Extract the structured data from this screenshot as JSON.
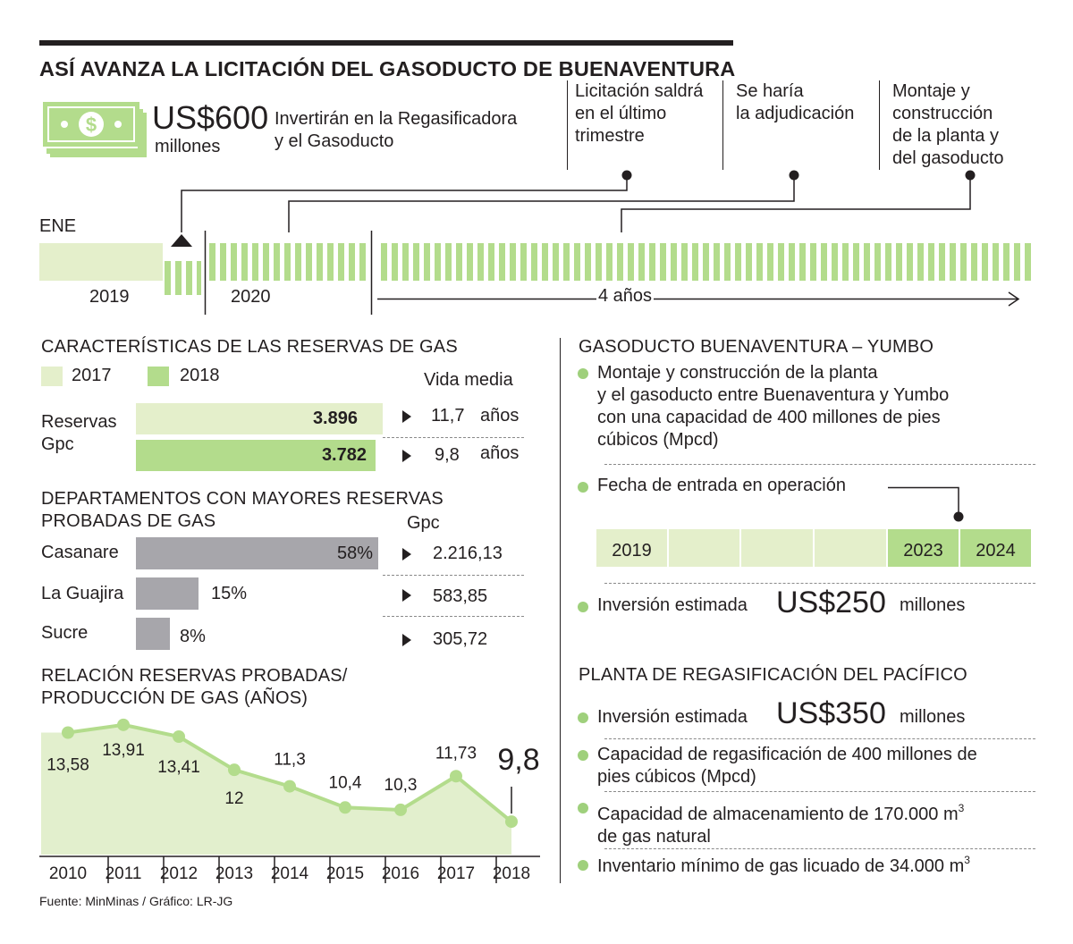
{
  "header": {
    "title": "ASÍ AVANZA LA LICITACIÓN DEL GASODUCTO DE BUENAVENTURA",
    "money_icon": "dollar-bills-icon",
    "investment_amount": "US$600",
    "investment_unit": "millones",
    "investment_desc_1": "Invertirán en la Regasificadora",
    "investment_desc_2": "y el Gasoducto"
  },
  "timeline": {
    "events": [
      {
        "line1": "Licitación saldrá",
        "line2": "en el último",
        "line3": "trimestre",
        "line4": ""
      },
      {
        "line1": "Se haría",
        "line2": "la adjudicación",
        "line3": "",
        "line4": ""
      },
      {
        "line1": "Montaje y",
        "line2": "construcción",
        "line3": "de la planta y",
        "line4": "del gasoducto"
      }
    ],
    "start_month": "ENE",
    "year_2019": "2019",
    "year_2020": "2020",
    "span_label": "4 años"
  },
  "reserves": {
    "title": "CARACTERÍSTICAS DE LAS RESERVAS DE GAS",
    "legend": [
      {
        "label": "2017",
        "color": "#e4efcb"
      },
      {
        "label": "2018",
        "color": "#b3dc8c"
      }
    ],
    "life_header": "Vida media",
    "row_label_1": "Reservas",
    "row_label_2": "Gpc",
    "bars": [
      {
        "year": "2017",
        "value": 3896,
        "value_label": "3.896",
        "life": "11,7",
        "unit": "años"
      },
      {
        "year": "2018",
        "value": 3782,
        "value_label": "3.782",
        "life": "9,8",
        "unit": "años"
      }
    ]
  },
  "departments": {
    "title_1": "DEPARTAMENTOS CON MAYORES RESERVAS",
    "title_2": "PROBADAS DE GAS",
    "unit_header": "Gpc",
    "rows": [
      {
        "name": "Casanare",
        "pct": 58,
        "pct_label": "58%",
        "gpc": "2.216,13"
      },
      {
        "name": "La Guajira",
        "pct": 15,
        "pct_label": "15%",
        "gpc": "583,85"
      },
      {
        "name": "Sucre",
        "pct": 8,
        "pct_label": "8%",
        "gpc": "305,72"
      }
    ]
  },
  "chart_data": {
    "type": "area",
    "title": "RELACIÓN RESERVAS PROBADAS/ PRODUCCIÓN DE GAS (AÑOS)",
    "title_1": "RELACIÓN RESERVAS PROBADAS/",
    "title_2": "PRODUCCIÓN DE GAS (AÑOS)",
    "categories": [
      "2010",
      "2011",
      "2012",
      "2013",
      "2014",
      "2015",
      "2016",
      "2017",
      "2018"
    ],
    "values": [
      13.58,
      13.91,
      13.41,
      12,
      11.3,
      10.4,
      10.3,
      11.73,
      9.8
    ],
    "labels": [
      "13,58",
      "13,91",
      "13,41",
      "12",
      "11,3",
      "10,4",
      "10,3",
      "11,73",
      "9,8"
    ],
    "ylim": [
      8.4,
      14.7
    ],
    "xlabel": "",
    "ylabel": "",
    "fill_color": "#e2efcd",
    "line_color": "#b3dc8c"
  },
  "source": "Fuente: MinMinas / Gráfico: LR-JG",
  "pipeline": {
    "title": "GASODUCTO BUENAVENTURA – YUMBO",
    "desc_1": "Montaje y construcción de la planta",
    "desc_2": "y el gasoducto entre Buenaventura y Yumbo",
    "desc_3": "con una capacidad de 400 millones de pies",
    "desc_4": "cúbicos (Mpcd)",
    "date_label": "Fecha de entrada en operación",
    "years": [
      "2019",
      "",
      "",
      "",
      "2023",
      "2024"
    ],
    "investment_label": "Inversión estimada",
    "investment_amount": "US$250",
    "investment_unit": "millones"
  },
  "plant": {
    "title": "PLANTA DE REGASIFICACIÓN DEL PACÍFICO",
    "investment_label": "Inversión estimada",
    "investment_amount": "US$350",
    "investment_unit": "millones",
    "cap_1": "Capacidad de regasificación de 400 millones de",
    "cap_2": "pies cúbicos (Mpcd)",
    "storage_1": "Capacidad de almacenamiento de 170.000 m",
    "storage_sup": "3",
    "storage_2": "de gas natural",
    "inventory": "Inventario mínimo de gas licuado de 34.000 m",
    "inventory_sup": "3"
  }
}
